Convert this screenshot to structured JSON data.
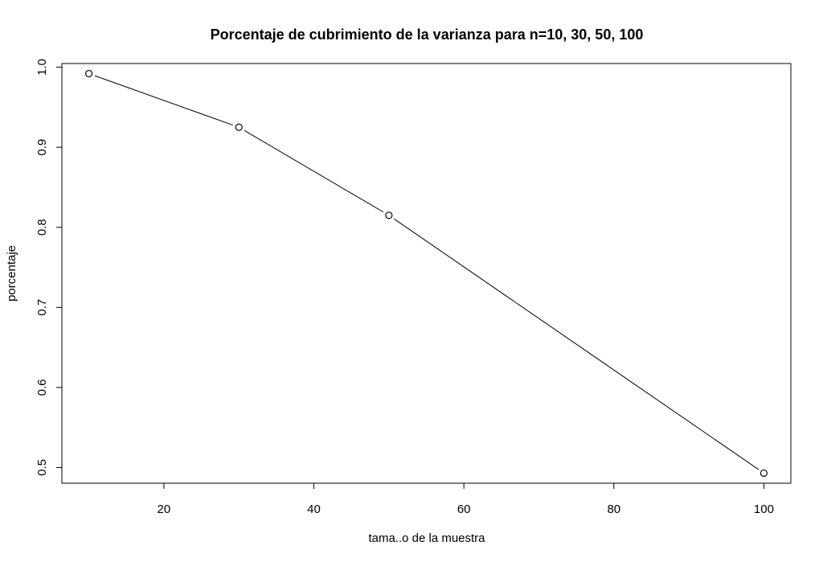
{
  "chart_data": {
    "type": "line",
    "title": "Porcentaje de cubrimiento de la varianza para n=10, 30, 50, 100",
    "xlabel": "tama..o de la muestra",
    "ylabel": "porcentaje",
    "x": [
      10,
      30,
      50,
      100
    ],
    "series": [
      {
        "values": [
          0.992,
          0.925,
          0.815,
          0.493
        ]
      }
    ],
    "xlim": [
      6.4,
      103.6
    ],
    "ylim": [
      0.4804,
      1.0046
    ],
    "xticks": [
      20,
      40,
      60,
      80,
      100
    ],
    "yticks": [
      0.5,
      0.6,
      0.7,
      0.8,
      0.9,
      1.0
    ],
    "xtick_labels": [
      "20",
      "40",
      "60",
      "80",
      "100"
    ],
    "ytick_labels": [
      "0.5",
      "0.6",
      "0.7",
      "0.8",
      "0.9",
      "1.0"
    ],
    "marker": "open-circle",
    "line_color": "#000000",
    "grid": false,
    "legend": "none"
  }
}
